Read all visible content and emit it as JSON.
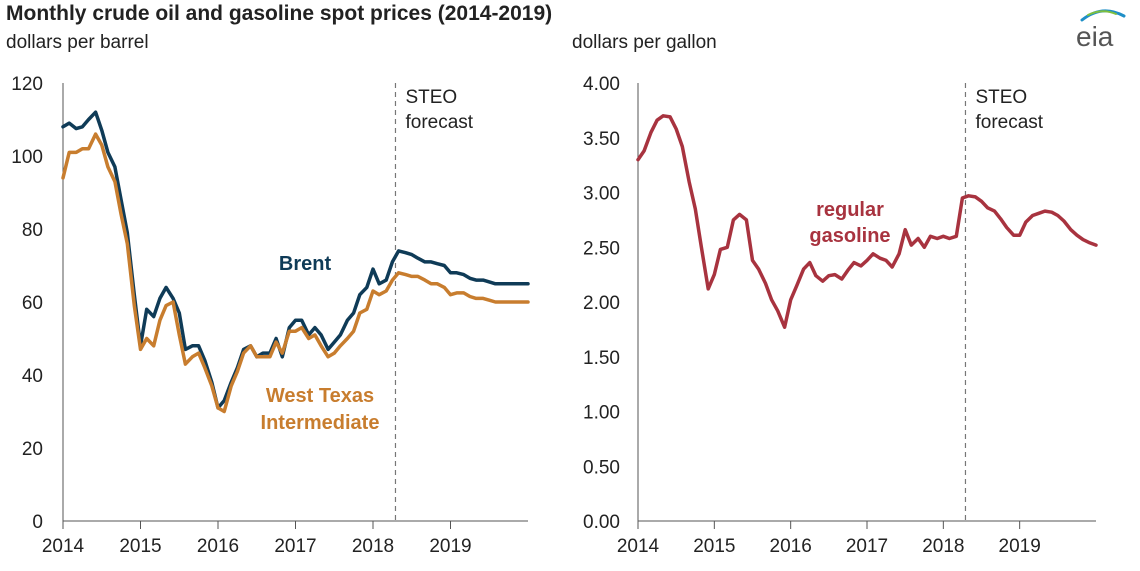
{
  "title": "Monthly crude oil and gasoline spot prices (2014-2019)",
  "logo_text": "eia",
  "chart_data": [
    {
      "type": "line",
      "ylabel": "dollars per barrel",
      "ylim": [
        0,
        120
      ],
      "yticks": [
        0,
        20,
        40,
        60,
        80,
        100,
        120
      ],
      "ytick_labels": [
        "0",
        "20",
        "40",
        "60",
        "80",
        "100",
        "120"
      ],
      "xlim": [
        2014,
        2020
      ],
      "xticks": [
        2014,
        2015,
        2016,
        2017,
        2018,
        2019
      ],
      "xtick_labels": [
        "2014",
        "2015",
        "2016",
        "2017",
        "2018",
        "2019"
      ],
      "forecast_start": 2018.29,
      "forecast_label": [
        "STEO",
        "forecast"
      ],
      "grid": false,
      "series": [
        {
          "name": "Brent",
          "color": "#0f3b57",
          "x": [
            2014.0,
            2014.08,
            2014.17,
            2014.25,
            2014.33,
            2014.42,
            2014.5,
            2014.58,
            2014.67,
            2014.75,
            2014.83,
            2014.92,
            2015.0,
            2015.08,
            2015.17,
            2015.25,
            2015.33,
            2015.42,
            2015.5,
            2015.58,
            2015.67,
            2015.75,
            2015.83,
            2015.92,
            2016.0,
            2016.08,
            2016.17,
            2016.25,
            2016.33,
            2016.42,
            2016.5,
            2016.58,
            2016.67,
            2016.75,
            2016.83,
            2016.92,
            2017.0,
            2017.08,
            2017.17,
            2017.25,
            2017.33,
            2017.42,
            2017.5,
            2017.58,
            2017.67,
            2017.75,
            2017.83,
            2017.92,
            2018.0,
            2018.08,
            2018.17,
            2018.25,
            2018.33,
            2018.42,
            2018.5,
            2018.58,
            2018.67,
            2018.75,
            2018.83,
            2018.92,
            2019.0,
            2019.08,
            2019.17,
            2019.25,
            2019.33,
            2019.42,
            2019.5,
            2019.58,
            2019.67,
            2019.75,
            2019.83,
            2019.92,
            2020.0
          ],
          "values": [
            108,
            109,
            107.5,
            108,
            110,
            112,
            107,
            101,
            97,
            88,
            79,
            62,
            48,
            58,
            56,
            61,
            64,
            61,
            57,
            47,
            48,
            48,
            44,
            38,
            31,
            33,
            38,
            42,
            47,
            48,
            45,
            46,
            46,
            50,
            45,
            53,
            55,
            55,
            51,
            53,
            51,
            47,
            49,
            51,
            55,
            57,
            62,
            64,
            69,
            65,
            66,
            71,
            74,
            73.5,
            73,
            72,
            71,
            71,
            70.5,
            70,
            68,
            68,
            67.5,
            66.5,
            66,
            66,
            65.5,
            65,
            65,
            65,
            65,
            65,
            65
          ]
        },
        {
          "name": "West Texas Intermediate",
          "color": "#c87d2e",
          "x": [
            2014.0,
            2014.08,
            2014.17,
            2014.25,
            2014.33,
            2014.42,
            2014.5,
            2014.58,
            2014.67,
            2014.75,
            2014.83,
            2014.92,
            2015.0,
            2015.08,
            2015.17,
            2015.25,
            2015.33,
            2015.42,
            2015.5,
            2015.58,
            2015.67,
            2015.75,
            2015.83,
            2015.92,
            2016.0,
            2016.08,
            2016.17,
            2016.25,
            2016.33,
            2016.42,
            2016.5,
            2016.58,
            2016.67,
            2016.75,
            2016.83,
            2016.92,
            2017.0,
            2017.08,
            2017.17,
            2017.25,
            2017.33,
            2017.42,
            2017.5,
            2017.58,
            2017.67,
            2017.75,
            2017.83,
            2017.92,
            2018.0,
            2018.08,
            2018.17,
            2018.25,
            2018.33,
            2018.42,
            2018.5,
            2018.58,
            2018.67,
            2018.75,
            2018.83,
            2018.92,
            2019.0,
            2019.08,
            2019.17,
            2019.25,
            2019.33,
            2019.42,
            2019.5,
            2019.58,
            2019.67,
            2019.75,
            2019.83,
            2019.92,
            2020.0
          ],
          "values": [
            94,
            101,
            101,
            102,
            102,
            106,
            103,
            97,
            93,
            84,
            76,
            59,
            47,
            50,
            48,
            55,
            59,
            60,
            51,
            43,
            45,
            46,
            42,
            37,
            31,
            30,
            37,
            41,
            46,
            48,
            45,
            45,
            45,
            49,
            46,
            52,
            52,
            53,
            50,
            51,
            48,
            45,
            46,
            48,
            50,
            52,
            57,
            58,
            63,
            62,
            63,
            66,
            68,
            67.5,
            67,
            67,
            66,
            65,
            65,
            64,
            62,
            62.5,
            62.5,
            61.5,
            61,
            61,
            60.5,
            60,
            60,
            60,
            60,
            60,
            60
          ]
        }
      ],
      "series_labels": [
        {
          "series": "Brent",
          "lines": [
            "Brent"
          ]
        },
        {
          "series": "West Texas Intermediate",
          "lines": [
            "West Texas",
            "Intermediate"
          ]
        }
      ]
    },
    {
      "type": "line",
      "ylabel": "dollars per gallon",
      "ylim": [
        0,
        4
      ],
      "yticks": [
        0,
        0.5,
        1,
        1.5,
        2,
        2.5,
        3,
        3.5,
        4
      ],
      "ytick_labels": [
        "0.00",
        "0.50",
        "1.00",
        "1.50",
        "2.00",
        "2.50",
        "3.00",
        "3.50",
        "4.00"
      ],
      "xlim": [
        2014,
        2020
      ],
      "xticks": [
        2014,
        2015,
        2016,
        2017,
        2018,
        2019
      ],
      "xtick_labels": [
        "2014",
        "2015",
        "2016",
        "2017",
        "2018",
        "2019"
      ],
      "forecast_start": 2018.29,
      "forecast_label": [
        "STEO",
        "forecast"
      ],
      "grid": false,
      "series": [
        {
          "name": "regular gasoline",
          "color": "#a8333f",
          "x": [
            2014.0,
            2014.08,
            2014.17,
            2014.25,
            2014.33,
            2014.42,
            2014.5,
            2014.58,
            2014.67,
            2014.75,
            2014.83,
            2014.92,
            2015.0,
            2015.08,
            2015.17,
            2015.25,
            2015.33,
            2015.42,
            2015.5,
            2015.58,
            2015.67,
            2015.75,
            2015.83,
            2015.92,
            2016.0,
            2016.08,
            2016.17,
            2016.25,
            2016.33,
            2016.42,
            2016.5,
            2016.58,
            2016.67,
            2016.75,
            2016.83,
            2016.92,
            2017.0,
            2017.08,
            2017.17,
            2017.25,
            2017.33,
            2017.42,
            2017.5,
            2017.58,
            2017.67,
            2017.75,
            2017.83,
            2017.92,
            2018.0,
            2018.08,
            2018.17,
            2018.25,
            2018.33,
            2018.42,
            2018.5,
            2018.58,
            2018.67,
            2018.75,
            2018.83,
            2018.92,
            2019.0,
            2019.08,
            2019.17,
            2019.25,
            2019.33,
            2019.42,
            2019.5,
            2019.58,
            2019.67,
            2019.75,
            2019.83,
            2019.92,
            2020.0
          ],
          "values": [
            3.3,
            3.38,
            3.55,
            3.66,
            3.7,
            3.69,
            3.58,
            3.42,
            3.1,
            2.85,
            2.5,
            2.12,
            2.25,
            2.48,
            2.5,
            2.75,
            2.8,
            2.75,
            2.38,
            2.3,
            2.17,
            2.02,
            1.92,
            1.77,
            2.02,
            2.15,
            2.3,
            2.36,
            2.24,
            2.19,
            2.24,
            2.25,
            2.21,
            2.29,
            2.36,
            2.33,
            2.38,
            2.44,
            2.4,
            2.38,
            2.32,
            2.44,
            2.66,
            2.52,
            2.58,
            2.5,
            2.6,
            2.58,
            2.6,
            2.58,
            2.6,
            2.95,
            2.97,
            2.96,
            2.92,
            2.86,
            2.83,
            2.76,
            2.68,
            2.61,
            2.61,
            2.73,
            2.79,
            2.81,
            2.83,
            2.82,
            2.79,
            2.74,
            2.66,
            2.61,
            2.57,
            2.54,
            2.52
          ]
        }
      ],
      "series_labels": [
        {
          "series": "regular gasoline",
          "lines": [
            "regular",
            "gasoline"
          ]
        }
      ]
    }
  ]
}
